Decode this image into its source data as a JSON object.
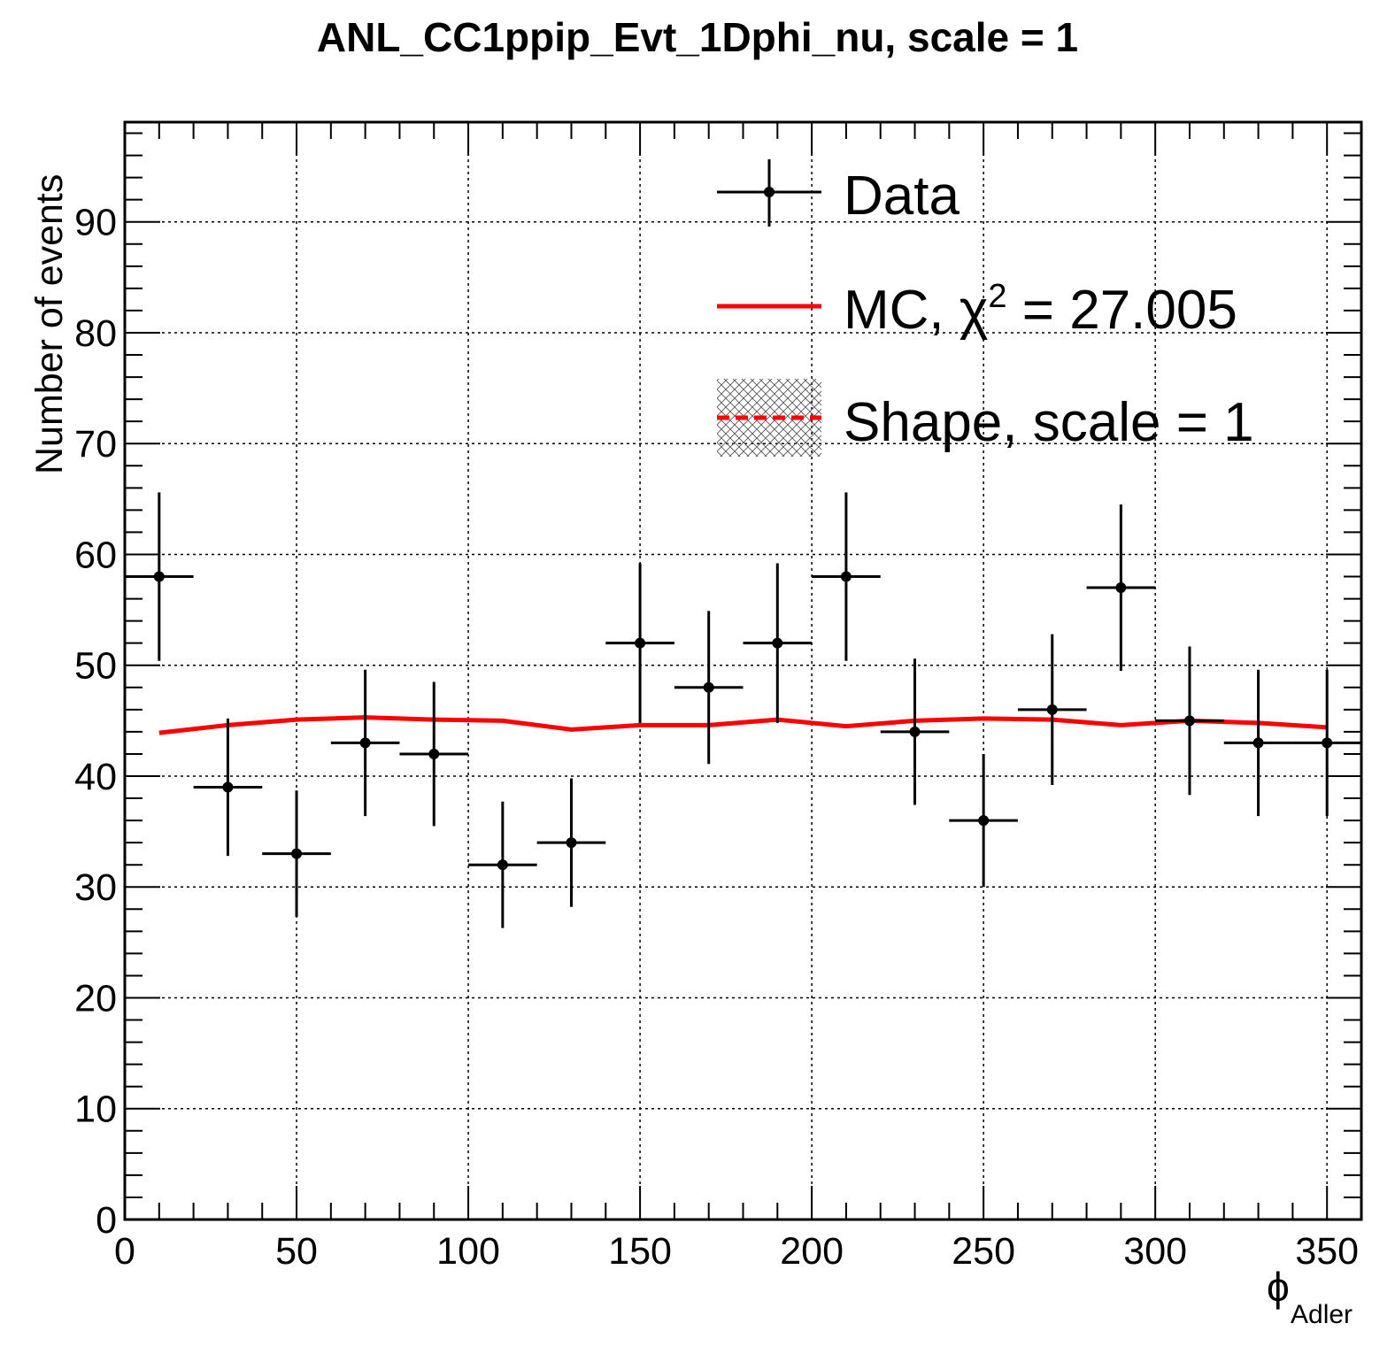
{
  "chart_data": {
    "type": "scatter",
    "title": "ANL_CC1ppip_Evt_1Dphi_nu, scale = 1",
    "xlabel": "ϕ",
    "xlabel_subscript": "Adler",
    "ylabel": "Number of events",
    "xlim": [
      0,
      360
    ],
    "ylim": [
      0,
      99
    ],
    "x_ticks": [
      0,
      50,
      100,
      150,
      200,
      250,
      300,
      350
    ],
    "y_ticks": [
      0,
      10,
      20,
      30,
      40,
      50,
      60,
      70,
      80,
      90
    ],
    "grid": true,
    "legend_position": "top-right",
    "series": [
      {
        "name": "Data",
        "kind": "points-with-errors",
        "color": "#000000",
        "x": [
          10,
          30,
          50,
          70,
          90,
          110,
          130,
          150,
          170,
          190,
          210,
          230,
          250,
          270,
          290,
          310,
          330,
          350
        ],
        "x_half_width": 10,
        "y": [
          58,
          39,
          33,
          43,
          42,
          32,
          34,
          52,
          48,
          52,
          58,
          44,
          36,
          46,
          57,
          45,
          43,
          43
        ],
        "y_err": [
          7.6,
          6.2,
          5.7,
          6.6,
          6.5,
          5.7,
          5.8,
          7.2,
          6.9,
          7.2,
          7.6,
          6.6,
          6.0,
          6.8,
          7.5,
          6.7,
          6.6,
          6.6
        ]
      },
      {
        "name": "MC",
        "legend_label": "MC, χ",
        "legend_sup": "2",
        "legend_suffix": " = 27.005",
        "kind": "line",
        "color": "#ff0000",
        "x": [
          10,
          30,
          50,
          70,
          90,
          110,
          130,
          150,
          170,
          190,
          210,
          230,
          250,
          270,
          290,
          310,
          330,
          350
        ],
        "y": [
          43.9,
          44.6,
          45.1,
          45.3,
          45.1,
          45.0,
          44.2,
          44.6,
          44.6,
          45.1,
          44.5,
          45.0,
          45.2,
          45.1,
          44.6,
          45.0,
          44.8,
          44.4
        ]
      },
      {
        "name": "Shape, scale = 1",
        "kind": "hatched-band",
        "color": "#ff0000"
      }
    ]
  }
}
